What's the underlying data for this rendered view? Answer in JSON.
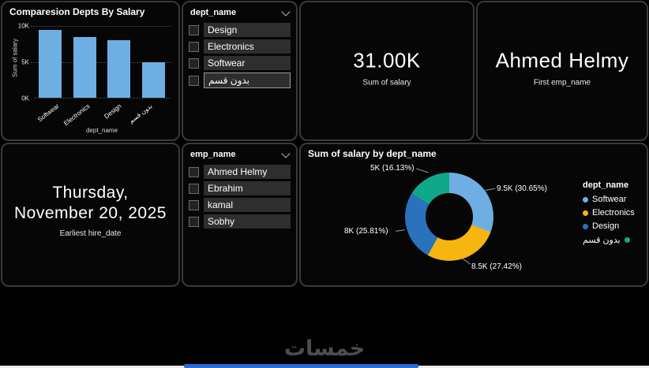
{
  "tiles": {
    "dept_slicer": {
      "header": "dept_name",
      "items": [
        "Design",
        "Electronics",
        "Softwear",
        "بدون قسم"
      ]
    },
    "emp_slicer": {
      "header": "emp_name",
      "items": [
        "Ahmed Helmy",
        "Ebrahim",
        "kamal",
        "Sobhy"
      ]
    },
    "salary_card": {
      "value": "31.00K",
      "label": "Sum of salary"
    },
    "emp_card": {
      "value": "Ahmed Helmy",
      "label": "First emp_name"
    },
    "date_card": {
      "value": "Thursday, November 20, 2025",
      "label": "Earliest hire_date"
    }
  },
  "chart_data": [
    {
      "type": "bar",
      "title": "Comparesion Depts By Salary",
      "categories": [
        "Softwear",
        "Electronics",
        "Design",
        "بدون قسم"
      ],
      "values": [
        9500,
        8500,
        8000,
        5000
      ],
      "xlabel": "dept_name",
      "ylabel": "Sum of salary",
      "yticks": [
        "10K",
        "5K",
        "0K"
      ],
      "ylim": [
        0,
        10000
      ],
      "bar_color": "#6FAEE3",
      "grid": "dotted"
    },
    {
      "type": "pie",
      "subtype": "donut",
      "title": "Sum of salary by dept_name",
      "legend_title": "dept_name",
      "legend_position": "right",
      "categories": [
        "Softwear",
        "Electronics",
        "Design",
        "بدون قسم"
      ],
      "values": [
        9500,
        8500,
        8000,
        5000
      ],
      "percents": [
        "30.65%",
        "27.42%",
        "25.81%",
        "16.13%"
      ],
      "labels": [
        "9.5K (30.65%)",
        "8.5K (27.42%)",
        "8K (25.81%)",
        "5K (16.13%)"
      ],
      "colors": [
        "#6FAEE3",
        "#F6B60F",
        "#2A72BC",
        "#0FA98A"
      ]
    }
  ],
  "footer": {
    "logo_text": "خمسات"
  },
  "theme": {
    "background": "#000000",
    "tile_background": "#060606",
    "tile_border": "#3a3a3a",
    "scroll_thumb": "#2a6bd4"
  }
}
